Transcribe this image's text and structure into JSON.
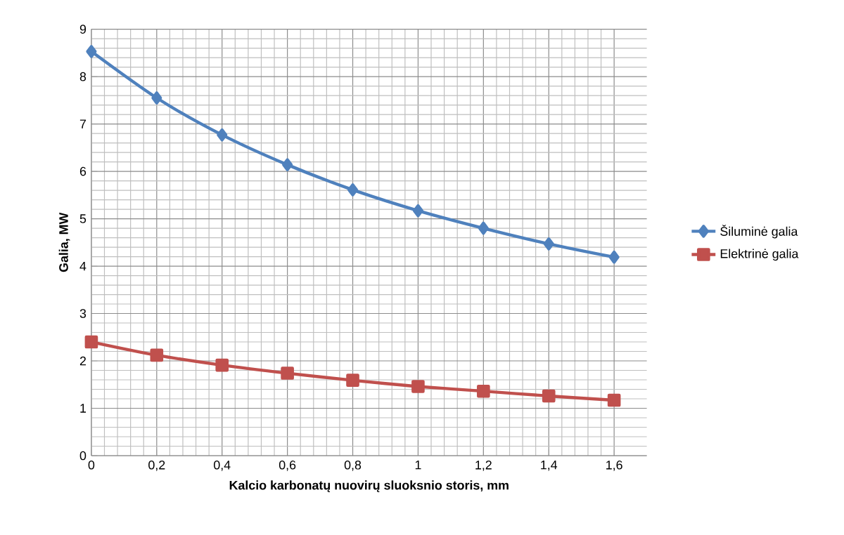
{
  "chart_data": {
    "type": "line",
    "xlabel": "Kalcio karbonatų nuovirų sluoksnio storis, mm",
    "ylabel": "Galia, MW",
    "x": [
      0,
      0.2,
      0.4,
      0.6,
      0.8,
      1,
      1.2,
      1.4,
      1.6
    ],
    "series": [
      {
        "name": "Šiluminė galia",
        "color": "#4f81bd",
        "marker": "diamond",
        "values": [
          8.53,
          7.55,
          6.77,
          6.14,
          5.61,
          5.17,
          4.8,
          4.47,
          4.19
        ]
      },
      {
        "name": "Elektrinė galia",
        "color": "#c0504d",
        "marker": "square",
        "values": [
          2.4,
          2.12,
          1.91,
          1.74,
          1.59,
          1.46,
          1.36,
          1.26,
          1.17
        ]
      }
    ],
    "xlim": [
      0,
      1.7
    ],
    "xticks": [
      0,
      {
        "value": 0.2,
        "label": "0,2"
      },
      {
        "value": 0.4,
        "label": "0,4"
      },
      {
        "value": 0.6,
        "label": "0,6"
      },
      {
        "value": 0.8,
        "label": "0,8"
      },
      1,
      {
        "value": 1.2,
        "label": "1,2"
      },
      {
        "value": 1.4,
        "label": "1,4"
      },
      {
        "value": 1.6,
        "label": "1,6"
      }
    ],
    "ylim": [
      0,
      9
    ],
    "yticks": [
      0,
      1,
      2,
      3,
      4,
      5,
      6,
      7,
      8,
      9
    ],
    "grid": true,
    "legend": "right"
  }
}
